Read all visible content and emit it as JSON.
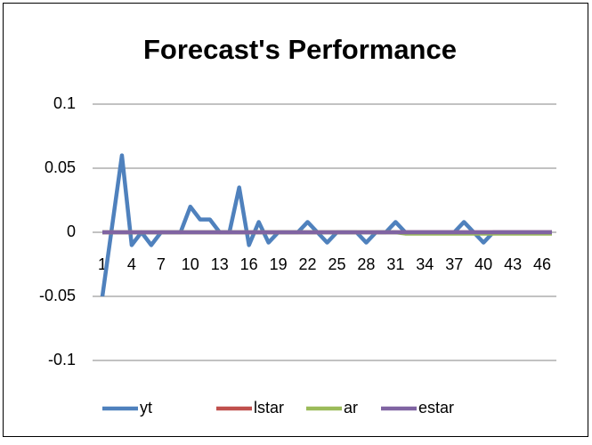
{
  "chart_data": {
    "type": "line",
    "title": "Forecast's Performance",
    "categories": [
      1,
      null,
      null,
      4,
      null,
      null,
      7,
      null,
      null,
      10,
      null,
      null,
      13,
      null,
      null,
      16,
      null,
      null,
      19,
      null,
      null,
      22,
      null,
      null,
      25,
      null,
      null,
      28,
      null,
      null,
      31,
      null,
      null,
      34,
      null,
      null,
      37,
      null,
      null,
      40,
      null,
      null,
      43,
      null,
      null,
      46,
      null
    ],
    "series": [
      {
        "name": "yt",
        "color": "#4f81bd",
        "values": [
          -0.05,
          0.005,
          0.06,
          -0.01,
          0,
          -0.01,
          0,
          0,
          0,
          0.02,
          0.01,
          0.01,
          0,
          0,
          0.035,
          -0.01,
          0.008,
          -0.008,
          0,
          0,
          0,
          0.008,
          0,
          -0.008,
          0,
          0,
          0,
          -0.008,
          0,
          0,
          0.008,
          0,
          0,
          0,
          0,
          0,
          0,
          0.008,
          0,
          -0.008,
          0,
          0,
          0,
          0,
          0,
          0,
          0
        ]
      },
      {
        "name": "lstar",
        "color": "#c0504d",
        "values": [
          0,
          0,
          0,
          0,
          0,
          0,
          0,
          0,
          0,
          0,
          0,
          0,
          0,
          0,
          0,
          0,
          0,
          0,
          0,
          0,
          0,
          0,
          0,
          0,
          0,
          0,
          0,
          0,
          0,
          0,
          0,
          0,
          0,
          0,
          0,
          0,
          0,
          0,
          0,
          0,
          0,
          0,
          0,
          0,
          0,
          0,
          0
        ]
      },
      {
        "name": "ar",
        "color": "#9bbb59",
        "values": [
          0,
          0,
          0,
          0,
          0,
          0,
          0,
          0,
          0,
          0,
          0,
          0,
          0,
          0,
          0,
          0,
          0,
          0,
          0,
          0,
          0,
          0,
          0,
          0,
          0,
          0,
          0,
          0,
          0,
          0,
          0,
          -0.001,
          -0.001,
          -0.001,
          -0.001,
          -0.001,
          -0.001,
          -0.001,
          -0.001,
          -0.001,
          -0.001,
          -0.001,
          -0.001,
          -0.001,
          -0.001,
          -0.001,
          -0.001
        ]
      },
      {
        "name": "estar",
        "color": "#8064a2",
        "values": [
          0,
          0,
          0,
          0,
          0,
          0,
          0,
          0,
          0,
          0,
          0,
          0,
          0,
          0,
          0,
          0,
          0,
          0,
          0,
          0,
          0,
          0,
          0,
          0,
          0,
          0,
          0,
          0,
          0,
          0,
          0,
          0,
          0,
          0,
          0,
          0,
          0,
          0,
          0,
          0,
          0,
          0,
          0,
          0,
          0,
          0,
          0
        ]
      }
    ],
    "ylim": [
      -0.1,
      0.1
    ],
    "yticks": [
      -0.1,
      -0.05,
      0,
      0.05,
      0.1
    ],
    "grid": true,
    "legend": "bottom"
  }
}
